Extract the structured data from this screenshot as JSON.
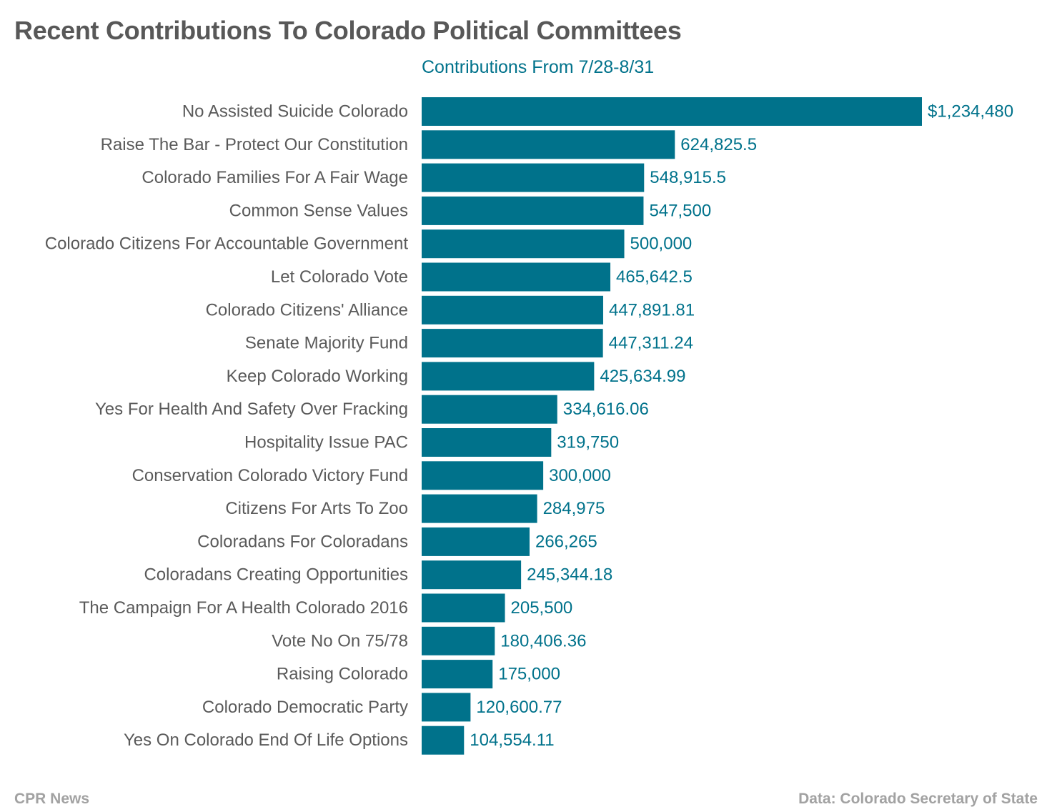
{
  "header": {
    "title": "Recent Contributions To Colorado Political Committees"
  },
  "footer": {
    "source_left": "CPR News",
    "source_right": "Data: Colorado Secretary of State"
  },
  "colors": {
    "bar": "#00728b",
    "value_label": "#00728b",
    "category_label": "#5a5a5a",
    "title": "#585858",
    "footer": "#a2a2a2"
  },
  "chart_data": {
    "type": "bar",
    "orientation": "horizontal",
    "title": "Recent Contributions To Colorado Political Committees",
    "xlabel": "",
    "ylabel": "",
    "grid": false,
    "legend": "none",
    "xlim": [
      0,
      1234480
    ],
    "categories": [
      "No Assisted Suicide Colorado",
      "Raise The Bar - Protect Our Constitution",
      "Colorado Families For A Fair Wage",
      "Common Sense Values",
      "Colorado Citizens For Accountable Government",
      "Let Colorado Vote",
      "Colorado Citizens' Alliance",
      "Senate Majority Fund",
      "Keep Colorado Working",
      "Yes For Health And Safety Over Fracking",
      "Hospitality Issue PAC",
      "Conservation Colorado Victory Fund",
      "Citizens For Arts To Zoo",
      "Coloradans For Coloradans",
      "Coloradans Creating Opportunities",
      "The Campaign For A Health Colorado 2016",
      "Vote No On 75/78",
      "Raising Colorado",
      "Colorado Democratic Party",
      "Yes On Colorado End Of Life Options"
    ],
    "series": [
      {
        "name": "Contributions From 7/28-8/31",
        "values": [
          1234480,
          624825.5,
          548915.5,
          547500,
          500000,
          465642.5,
          447891.81,
          447311.24,
          425634.99,
          334616.06,
          319750,
          300000,
          284975,
          266265,
          245344.18,
          205500,
          180406.36,
          175000,
          120600.77,
          104554.11
        ],
        "value_labels": [
          "$1,234,480",
          "624,825.5",
          "548,915.5",
          "547,500",
          "500,000",
          "465,642.5",
          "447,891.81",
          "447,311.24",
          "425,634.99",
          "334,616.06",
          "319,750",
          "300,000",
          "284,975",
          "266,265",
          "245,344.18",
          "205,500",
          "180,406.36",
          "175,000",
          "120,600.77",
          "104,554.11"
        ]
      }
    ]
  }
}
